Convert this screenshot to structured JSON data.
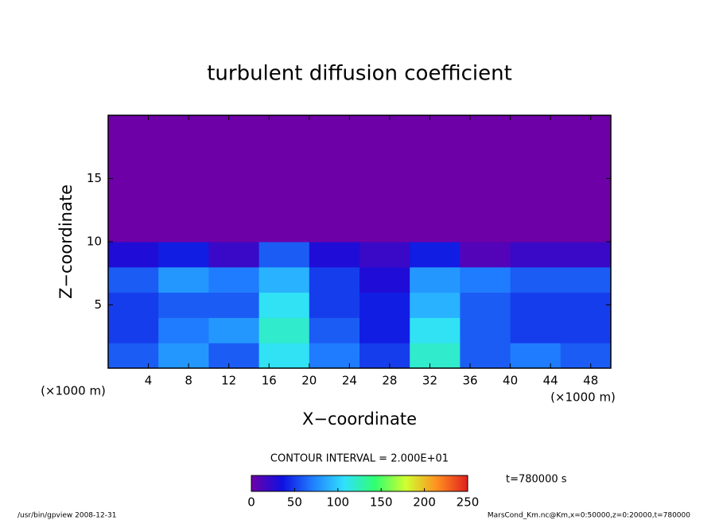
{
  "chart_data": {
    "type": "heatmap",
    "title": "turbulent diffusion coefficient",
    "x_label": "X−coordinate",
    "y_label": "Z−coordinate",
    "x_unit_left": "(×1000 m)",
    "x_unit_right": "(×1000 m)",
    "contour_note": "CONTOUR INTERVAL = 2.000E+01",
    "time_note": "t=780000 s",
    "footer_left": "/usr/bin/gpview  2008-12-31",
    "footer_right": "MarsCond_Km.nc@Km,x=0:50000,z=0:20000,t=780000",
    "xlim": [
      0,
      50
    ],
    "ylim": [
      0,
      20
    ],
    "xticks": [
      4,
      8,
      12,
      16,
      20,
      24,
      28,
      32,
      36,
      40,
      44,
      48
    ],
    "yticks": [
      5,
      10,
      15
    ],
    "xbins": [
      0,
      5,
      10,
      15,
      20,
      25,
      30,
      35,
      40,
      45,
      50
    ],
    "ybins": [
      0,
      2,
      4,
      6,
      8,
      10,
      20
    ],
    "z": [
      [
        60,
        80,
        60,
        110,
        70,
        50,
        120,
        60,
        70,
        60
      ],
      [
        50,
        70,
        80,
        120,
        60,
        40,
        110,
        60,
        50,
        50
      ],
      [
        50,
        60,
        60,
        110,
        50,
        40,
        90,
        60,
        50,
        50
      ],
      [
        60,
        80,
        70,
        90,
        50,
        30,
        80,
        70,
        60,
        60
      ],
      [
        30,
        40,
        20,
        60,
        30,
        20,
        40,
        10,
        20,
        20
      ],
      [
        0,
        0,
        0,
        0,
        0,
        0,
        0,
        0,
        0,
        0
      ]
    ],
    "colorbar_lim": [
      0,
      250
    ],
    "colorbar_ticks": [
      0,
      50,
      100,
      150,
      200,
      250
    ],
    "colormap": [
      "#6e00a8",
      "#1010e0",
      "#2080ff",
      "#30e0ff",
      "#30ff70",
      "#d0ff30",
      "#ff9020",
      "#e02020"
    ]
  }
}
